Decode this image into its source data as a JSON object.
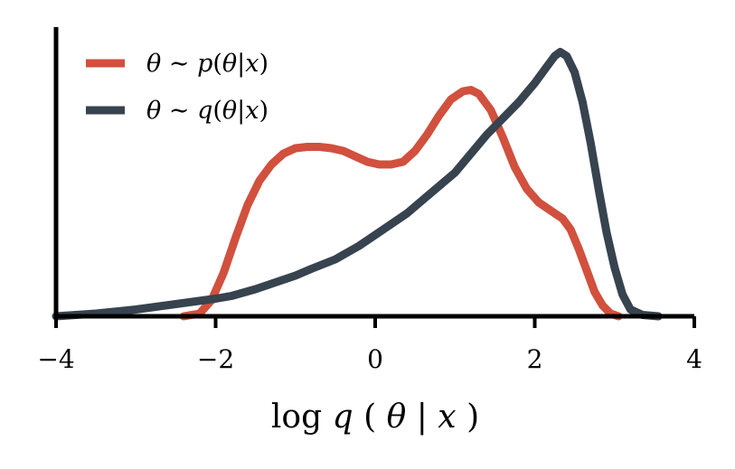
{
  "chart_data": {
    "type": "line",
    "title": "",
    "xlabel": "log q(θ|x)",
    "xlabel_parts": {
      "fn": "log",
      "var": "q",
      "open": "(",
      "theta": "θ",
      "bar": "|",
      "x": "x",
      "close": ")"
    },
    "ylabel": "",
    "xlim": [
      -4,
      4
    ],
    "ylim": [
      0,
      1.0
    ],
    "xticks": [
      -4,
      -2,
      0,
      2,
      4
    ],
    "xtick_labels": [
      "−4",
      "−2",
      "0",
      "2",
      "4"
    ],
    "yticks": [],
    "grid": false,
    "legend_position": "top-left",
    "series": [
      {
        "name": "θ ∼ p(θ|x)",
        "name_parts": {
          "theta": "θ",
          "sim": " ∼ ",
          "fn": "p",
          "open": "(",
          "theta2": "θ",
          "bar": "|",
          "x": "x",
          "close": ")"
        },
        "color": "#d1503e",
        "x": [
          -2.4,
          -2.2,
          -2.05,
          -1.9,
          -1.75,
          -1.6,
          -1.45,
          -1.3,
          -1.15,
          -1.0,
          -0.85,
          -0.7,
          -0.55,
          -0.4,
          -0.25,
          -0.1,
          0.05,
          0.2,
          0.35,
          0.5,
          0.65,
          0.8,
          0.95,
          1.1,
          1.2,
          1.3,
          1.45,
          1.6,
          1.75,
          1.9,
          2.05,
          2.2,
          2.35,
          2.45,
          2.55,
          2.65,
          2.75,
          2.85,
          2.95,
          3.05
        ],
        "y": [
          0.0,
          0.01,
          0.06,
          0.16,
          0.29,
          0.41,
          0.5,
          0.56,
          0.6,
          0.62,
          0.625,
          0.625,
          0.62,
          0.61,
          0.59,
          0.57,
          0.56,
          0.56,
          0.57,
          0.61,
          0.67,
          0.74,
          0.8,
          0.83,
          0.835,
          0.82,
          0.76,
          0.66,
          0.55,
          0.47,
          0.42,
          0.39,
          0.36,
          0.32,
          0.25,
          0.17,
          0.09,
          0.04,
          0.01,
          0.0
        ]
      },
      {
        "name": "θ ∼ q(θ|x)",
        "name_parts": {
          "theta": "θ",
          "sim": " ∼ ",
          "fn": "q",
          "open": "(",
          "theta2": "θ",
          "bar": "|",
          "x": "x",
          "close": ")"
        },
        "color": "#37434e",
        "x": [
          -4.0,
          -3.5,
          -3.0,
          -2.5,
          -2.0,
          -1.8,
          -1.5,
          -1.2,
          -1.0,
          -0.8,
          -0.5,
          -0.2,
          0.0,
          0.2,
          0.4,
          0.6,
          0.8,
          1.0,
          1.2,
          1.4,
          1.6,
          1.8,
          2.0,
          2.15,
          2.25,
          2.32,
          2.4,
          2.5,
          2.6,
          2.7,
          2.8,
          2.9,
          3.0,
          3.1,
          3.2,
          3.35,
          3.55
        ],
        "y": [
          0.0,
          0.01,
          0.025,
          0.045,
          0.065,
          0.075,
          0.1,
          0.13,
          0.15,
          0.175,
          0.21,
          0.26,
          0.3,
          0.34,
          0.38,
          0.43,
          0.48,
          0.53,
          0.6,
          0.67,
          0.73,
          0.79,
          0.86,
          0.92,
          0.96,
          0.975,
          0.96,
          0.9,
          0.79,
          0.64,
          0.47,
          0.31,
          0.18,
          0.08,
          0.025,
          0.005,
          0.0
        ]
      }
    ]
  }
}
